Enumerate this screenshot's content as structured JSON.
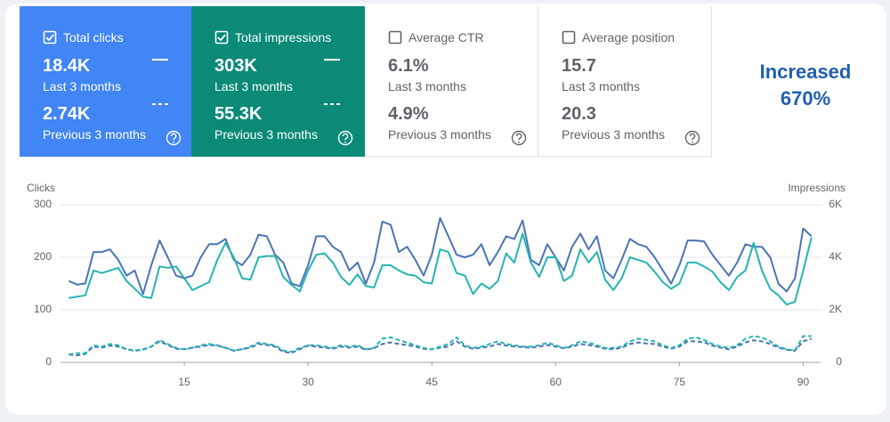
{
  "cards": [
    {
      "label": "Total clicks",
      "checked": true,
      "color": "#4285f4",
      "value": "18.4K",
      "period": "Last 3 months",
      "previous_value": "2.74K",
      "previous_period": "Previous 3 months"
    },
    {
      "label": "Total impressions",
      "checked": true,
      "color": "#0b8a78",
      "value": "303K",
      "period": "Last 3 months",
      "previous_value": "55.3K",
      "previous_period": "Previous 3 months"
    },
    {
      "label": "Average CTR",
      "checked": false,
      "value": "6.1%",
      "period": "Last 3 months",
      "previous_value": "4.9%",
      "previous_period": "Previous 3 months"
    },
    {
      "label": "Average position",
      "checked": false,
      "value": "15.7",
      "period": "Last 3 months",
      "previous_value": "20.3",
      "previous_period": "Previous 3 months"
    }
  ],
  "annotation": [
    "Increased",
    "670%"
  ],
  "chart_data": {
    "type": "line",
    "ylabel": "Clicks",
    "y2label": "Impressions",
    "xlim": [
      0,
      92
    ],
    "xticks": [
      15,
      30,
      45,
      60,
      75,
      90
    ],
    "ylim": [
      0,
      300
    ],
    "yticks": [
      0,
      100,
      200,
      300
    ],
    "y2lim": [
      0,
      6000
    ],
    "y2ticks": [
      0,
      {
        "value": 2000,
        "label": "2K"
      },
      {
        "value": 4000,
        "label": "4K"
      },
      {
        "value": 6000,
        "label": "6K"
      }
    ],
    "grid": true,
    "x": [
      1,
      2,
      3,
      4,
      5,
      6,
      7,
      8,
      9,
      10,
      11,
      12,
      13,
      14,
      15,
      16,
      17,
      18,
      19,
      20,
      21,
      22,
      23,
      24,
      25,
      26,
      27,
      28,
      29,
      30,
      31,
      32,
      33,
      34,
      35,
      36,
      37,
      38,
      39,
      40,
      41,
      42,
      43,
      44,
      45,
      46,
      47,
      48,
      49,
      50,
      51,
      52,
      53,
      54,
      55,
      56,
      57,
      58,
      59,
      60,
      61,
      62,
      63,
      64,
      65,
      66,
      67,
      68,
      69,
      70,
      71,
      72,
      73,
      74,
      75,
      76,
      77,
      78,
      79,
      80,
      81,
      82,
      83,
      84,
      85,
      86,
      87,
      88,
      89,
      90,
      91
    ],
    "series": [
      {
        "axis": "y",
        "color": "#4a74b4",
        "dashed": false,
        "values": [
          155,
          148,
          150,
          210,
          210,
          215,
          195,
          165,
          175,
          130,
          185,
          232,
          200,
          165,
          160,
          165,
          200,
          225,
          225,
          235,
          195,
          185,
          205,
          243,
          240,
          205,
          190,
          150,
          145,
          185,
          240,
          240,
          220,
          210,
          175,
          190,
          150,
          190,
          268,
          262,
          210,
          220,
          195,
          165,
          205,
          275,
          240,
          205,
          200,
          205,
          225,
          185,
          210,
          240,
          235,
          270,
          195,
          185,
          225,
          200,
          175,
          220,
          245,
          215,
          240,
          175,
          160,
          195,
          235,
          225,
          220,
          200,
          175,
          150,
          185,
          232,
          232,
          230,
          205,
          185,
          165,
          190,
          225,
          220,
          220,
          200,
          150,
          135,
          160,
          255,
          240
        ]
      },
      {
        "axis": "y2",
        "color": "#26b3b3",
        "dashed": false,
        "values": [
          2450,
          2500,
          2550,
          3500,
          3400,
          3500,
          3600,
          3100,
          2800,
          2500,
          2450,
          3650,
          3600,
          3650,
          3200,
          2750,
          2900,
          3050,
          3900,
          4550,
          4000,
          3200,
          3150,
          4000,
          4050,
          4050,
          3250,
          2950,
          2700,
          3500,
          4100,
          4150,
          3800,
          3250,
          2950,
          3350,
          2900,
          2850,
          3700,
          3700,
          3500,
          3350,
          3300,
          3050,
          3000,
          4300,
          4200,
          3400,
          3300,
          2600,
          3000,
          2800,
          3100,
          4150,
          3800,
          4900,
          3800,
          3250,
          4000,
          4000,
          3100,
          3300,
          4300,
          3800,
          4200,
          3150,
          2750,
          3200,
          4000,
          3900,
          3800,
          3450,
          3050,
          2800,
          3000,
          3800,
          3800,
          3650,
          3450,
          3050,
          2750,
          3250,
          3500,
          4550,
          3500,
          2800,
          2550,
          2200,
          2300,
          3500,
          4750
        ]
      },
      {
        "axis": "y",
        "color": "#4a74b4",
        "dashed": true,
        "values": [
          15,
          13,
          16,
          30,
          28,
          32,
          30,
          25,
          22,
          24,
          30,
          40,
          33,
          26,
          25,
          28,
          30,
          33,
          32,
          28,
          22,
          25,
          28,
          35,
          33,
          30,
          20,
          18,
          25,
          32,
          30,
          28,
          26,
          30,
          28,
          30,
          24,
          27,
          35,
          38,
          35,
          33,
          30,
          26,
          25,
          28,
          30,
          40,
          30,
          26,
          28,
          30,
          35,
          32,
          30,
          29,
          28,
          30,
          33,
          30,
          27,
          30,
          35,
          33,
          30,
          26,
          25,
          28,
          35,
          38,
          36,
          35,
          30,
          26,
          30,
          40,
          40,
          38,
          32,
          28,
          25,
          30,
          38,
          42,
          40,
          35,
          28,
          24,
          22,
          40,
          45
        ]
      },
      {
        "axis": "y2",
        "color": "#26b3b3",
        "dashed": true,
        "values": [
          300,
          350,
          350,
          650,
          600,
          700,
          650,
          500,
          450,
          500,
          600,
          850,
          700,
          550,
          500,
          550,
          650,
          700,
          650,
          550,
          450,
          500,
          600,
          750,
          700,
          650,
          450,
          400,
          550,
          650,
          650,
          600,
          550,
          650,
          600,
          650,
          500,
          550,
          900,
          950,
          850,
          750,
          650,
          550,
          500,
          600,
          700,
          950,
          650,
          550,
          600,
          700,
          800,
          700,
          650,
          600,
          600,
          650,
          750,
          650,
          550,
          650,
          800,
          750,
          650,
          550,
          550,
          600,
          800,
          900,
          850,
          800,
          650,
          550,
          650,
          900,
          950,
          850,
          700,
          600,
          550,
          650,
          900,
          1000,
          950,
          800,
          600,
          500,
          450,
          1000,
          1000
        ]
      }
    ]
  }
}
